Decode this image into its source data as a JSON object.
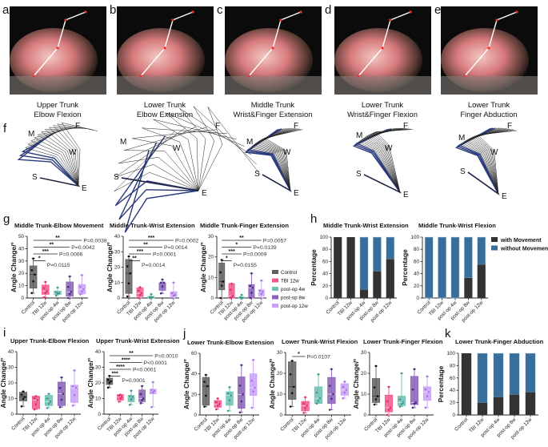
{
  "panel_letters": [
    "a",
    "b",
    "c",
    "d",
    "e",
    "f",
    "g",
    "h",
    "i",
    "j",
    "k"
  ],
  "photos": [
    {
      "caption_line1": "Upper Trunk",
      "caption_line2": "Elbow Flexion"
    },
    {
      "caption_line1": "Lower Trunk",
      "caption_line2": "Elbow Extension"
    },
    {
      "caption_line1": "Middle Trunk",
      "caption_line2": "Wrist&Finger Extension"
    },
    {
      "caption_line1": "Lower Trunk",
      "caption_line2": "Wrist&Finger Flexion"
    },
    {
      "caption_line1": "Lower Trunk",
      "caption_line2": "Finger Abduction"
    }
  ],
  "stick_labels": [
    {
      "F": "F",
      "M": "M",
      "W": "W",
      "S": "S",
      "E": "E"
    },
    {
      "F": "F",
      "M": "M",
      "W": "W",
      "S": "S",
      "E": "E"
    },
    {
      "F": "F",
      "M": "M",
      "W": "W",
      "S": "S",
      "E": "E"
    },
    {
      "F": "F",
      "M": "M",
      "W": "W",
      "S": "S",
      "E": "E"
    },
    {
      "F": "F",
      "M": "M",
      "W": "W",
      "S": "S",
      "E": "E"
    }
  ],
  "groups": [
    "Control",
    "TBI 12w",
    "post-op 4w",
    "post-op 8w",
    "post-op 12w"
  ],
  "group_colors": [
    "#5f5f5f",
    "#f2578f",
    "#6cc1b2",
    "#8a63b8",
    "#c9a2f7"
  ],
  "movement_legend": [
    {
      "label": "with Movement",
      "color": "#333333"
    },
    {
      "label": "without Movement",
      "color": "#386e9b"
    }
  ],
  "chart_data": [
    {
      "id": "g1",
      "type": "box",
      "title": "Middle Trunk-Elbow Movement",
      "ylabel": "Angle Change/°",
      "ylim": [
        0,
        50
      ],
      "yticks": [
        0,
        10,
        20,
        30,
        40,
        50
      ],
      "boxes": [
        [
          4,
          8,
          19,
          26,
          32
        ],
        [
          0.5,
          3,
          5.5,
          10.5,
          13
        ],
        [
          2,
          3,
          4,
          5.5,
          8.5
        ],
        [
          0,
          1.5,
          5,
          13,
          17.5
        ],
        [
          3,
          3.5,
          7,
          11,
          18.5
        ]
      ],
      "sig": [
        {
          "to": 4,
          "stars": "**",
          "p": "P=0.0038"
        },
        {
          "to": 3,
          "stars": "**",
          "p": "P=0.0042"
        },
        {
          "to": 2,
          "stars": "***",
          "p": "P=0.0006"
        },
        {
          "to": 1,
          "stars": "*",
          "p": "P=0.0115"
        }
      ]
    },
    {
      "id": "g2",
      "type": "box",
      "title": "Middle Trunk-Wrist Extension",
      "ylabel": "Angle Change/°",
      "ylim": [
        0,
        40
      ],
      "yticks": [
        0,
        10,
        20,
        30,
        40
      ],
      "boxes": [
        [
          1,
          3,
          16,
          25,
          27
        ],
        [
          0,
          1,
          3,
          6.5,
          7
        ],
        [
          0,
          0,
          0.5,
          1,
          2.5
        ],
        [
          3,
          5,
          10,
          10,
          12
        ],
        [
          0,
          1,
          2,
          4,
          10
        ]
      ],
      "sig": [
        {
          "to": 4,
          "stars": "***",
          "p": "P=0.0002"
        },
        {
          "to": 3,
          "stars": "**",
          "p": "P=0.0014"
        },
        {
          "to": 2,
          "stars": "***",
          "p": "P=0.0001"
        },
        {
          "to": 1,
          "stars": "**",
          "p": "P=0.0014"
        }
      ]
    },
    {
      "id": "g3",
      "type": "box",
      "title": "Middle Trunk-Finger Extension",
      "ylabel": "Angle Change/°",
      "ylim": [
        0,
        30
      ],
      "yticks": [
        0,
        10,
        20,
        30
      ],
      "boxes": [
        [
          0,
          4,
          8,
          17,
          18.5
        ],
        [
          0,
          0,
          1,
          7,
          7
        ],
        [
          0,
          0,
          0,
          0.5,
          1.5
        ],
        [
          0,
          0,
          5,
          6.5,
          12
        ],
        [
          0,
          1,
          3,
          4,
          8.5
        ]
      ],
      "sig": [
        {
          "to": 4,
          "stars": "**",
          "p": "P=0.0057"
        },
        {
          "to": 3,
          "stars": "*",
          "p": "P=0.0139"
        },
        {
          "to": 2,
          "stars": "***",
          "p": "P=0.0009"
        },
        {
          "to": 1,
          "stars": "*",
          "p": "P=0.0155"
        }
      ]
    },
    {
      "id": "h1",
      "type": "stacked-bar",
      "title": "Middle Trunk-Wrist Extension",
      "ylabel": "Percentage",
      "ylim": [
        0,
        100
      ],
      "yticks": [
        0,
        20,
        40,
        60,
        80,
        100
      ],
      "with_movement": [
        100,
        100,
        14,
        44,
        64
      ]
    },
    {
      "id": "h2",
      "type": "stacked-bar",
      "title": "Middle Trunk-Wrist Flexion",
      "ylabel": "Percentage",
      "ylim": [
        0,
        100
      ],
      "yticks": [
        0,
        20,
        40,
        60,
        80,
        100
      ],
      "with_movement": [
        0,
        0,
        0,
        33,
        55
      ]
    },
    {
      "id": "i1",
      "type": "box",
      "title": "Upper Trunk-Elbow Flexion",
      "ylabel": "Angle Change/°",
      "ylim": [
        0,
        40
      ],
      "yticks": [
        0,
        10,
        20,
        30,
        40
      ],
      "boxes": [
        [
          5,
          8.5,
          11,
          14,
          14.5
        ],
        [
          3,
          3.5,
          9,
          11.5,
          11.5
        ],
        [
          4,
          5.5,
          8,
          12,
          13
        ],
        [
          4.5,
          5.5,
          13,
          20.5,
          23.5
        ],
        [
          5.5,
          7.5,
          17,
          18.5,
          28
        ]
      ],
      "sig": []
    },
    {
      "id": "i2",
      "type": "box",
      "title": "Upper Trunk-Wrist Extension",
      "ylabel": "Angle Change/°",
      "ylim": [
        0,
        40
      ],
      "yticks": [
        0,
        10,
        20,
        30,
        40
      ],
      "boxes": [
        [
          17,
          19,
          21,
          23,
          24.5
        ],
        [
          8,
          9,
          11,
          12.5,
          12.5
        ],
        [
          6,
          8,
          11,
          12,
          15
        ],
        [
          7,
          8,
          10,
          15.5,
          18
        ],
        [
          4.5,
          13,
          15,
          16,
          20.5
        ]
      ],
      "sig": [
        {
          "to": 4,
          "stars": "**",
          "p": "P=0.0010"
        },
        {
          "to": 3,
          "stars": "****",
          "p": "P<0.0001"
        },
        {
          "to": 2,
          "stars": "****",
          "p": "P<0.0001"
        },
        {
          "to": 1,
          "stars": "***",
          "p": "P=0.0001"
        }
      ]
    },
    {
      "id": "j1",
      "type": "box",
      "title": "Lower Trunk-Elbow Extension",
      "ylabel": "Angle Change/°",
      "ylim": [
        0,
        60
      ],
      "yticks": [
        0,
        20,
        40,
        60
      ],
      "boxes": [
        [
          8,
          9.5,
          28,
          36.5,
          39
        ],
        [
          5.5,
          7.5,
          10.5,
          14,
          16
        ],
        [
          4,
          9.5,
          19,
          22.5,
          27
        ],
        [
          2.5,
          6.5,
          20,
          37,
          48.5
        ],
        [
          7,
          19,
          26.5,
          40,
          53.5
        ]
      ],
      "sig": []
    },
    {
      "id": "j2",
      "type": "box",
      "title": "Lower Trunk-Wrist Flexion",
      "ylabel": "Angle Change/°",
      "ylim": [
        0,
        30
      ],
      "yticks": [
        0,
        10,
        20,
        30
      ],
      "boxes": [
        [
          4,
          7.5,
          13.5,
          25.5,
          26
        ],
        [
          1,
          2,
          4.5,
          6.5,
          8.5
        ],
        [
          5.5,
          5.5,
          8,
          13.5,
          19.5
        ],
        [
          2.5,
          5.5,
          10,
          18,
          22
        ],
        [
          8,
          9.5,
          12,
          15,
          16
        ]
      ],
      "sig": [
        {
          "to": 1,
          "stars": "*",
          "p": "P=0.0107"
        }
      ]
    },
    {
      "id": "j3",
      "type": "box",
      "title": "Lower Trunk-Finger Flexion",
      "ylabel": "Angle Change/°",
      "ylim": [
        0,
        30
      ],
      "yticks": [
        0,
        10,
        20,
        30
      ],
      "boxes": [
        [
          5,
          6,
          9,
          17.5,
          23.5
        ],
        [
          0,
          1.5,
          3.5,
          9.5,
          13.5
        ],
        [
          4,
          4.5,
          6,
          9,
          20
        ],
        [
          3.5,
          5,
          6,
          18.5,
          22
        ],
        [
          3.5,
          7,
          11,
          13.5,
          18.5
        ]
      ],
      "sig": []
    },
    {
      "id": "k",
      "type": "stacked-bar",
      "title": "Lower Trunk-Finger Abduction",
      "ylabel": "Percentage",
      "ylim": [
        0,
        100
      ],
      "yticks": [
        0,
        20,
        40,
        60,
        80,
        100
      ],
      "with_movement": [
        100,
        20,
        29,
        33,
        37
      ]
    }
  ]
}
